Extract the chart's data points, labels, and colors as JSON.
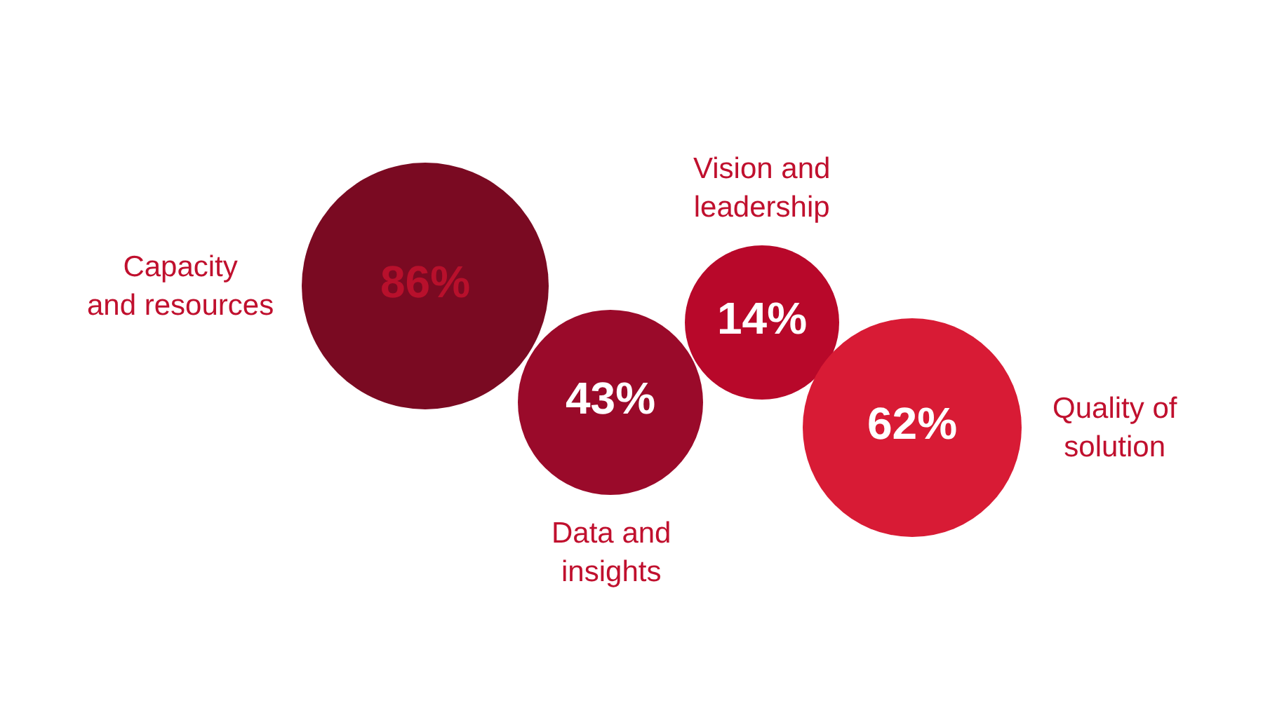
{
  "chart_data": {
    "type": "other",
    "categories": [
      "Capacity\nand resources",
      "Data and\ninsights",
      "Vision and\nleadership",
      "Quality of\nsolution"
    ],
    "values": [
      86,
      43,
      14,
      62
    ],
    "colors": [
      "#7a0a22",
      "#9a0a2a",
      "#b8082a",
      "#d81b35"
    ],
    "value_labels": [
      "86%",
      "43%",
      "14%",
      "62%"
    ]
  }
}
